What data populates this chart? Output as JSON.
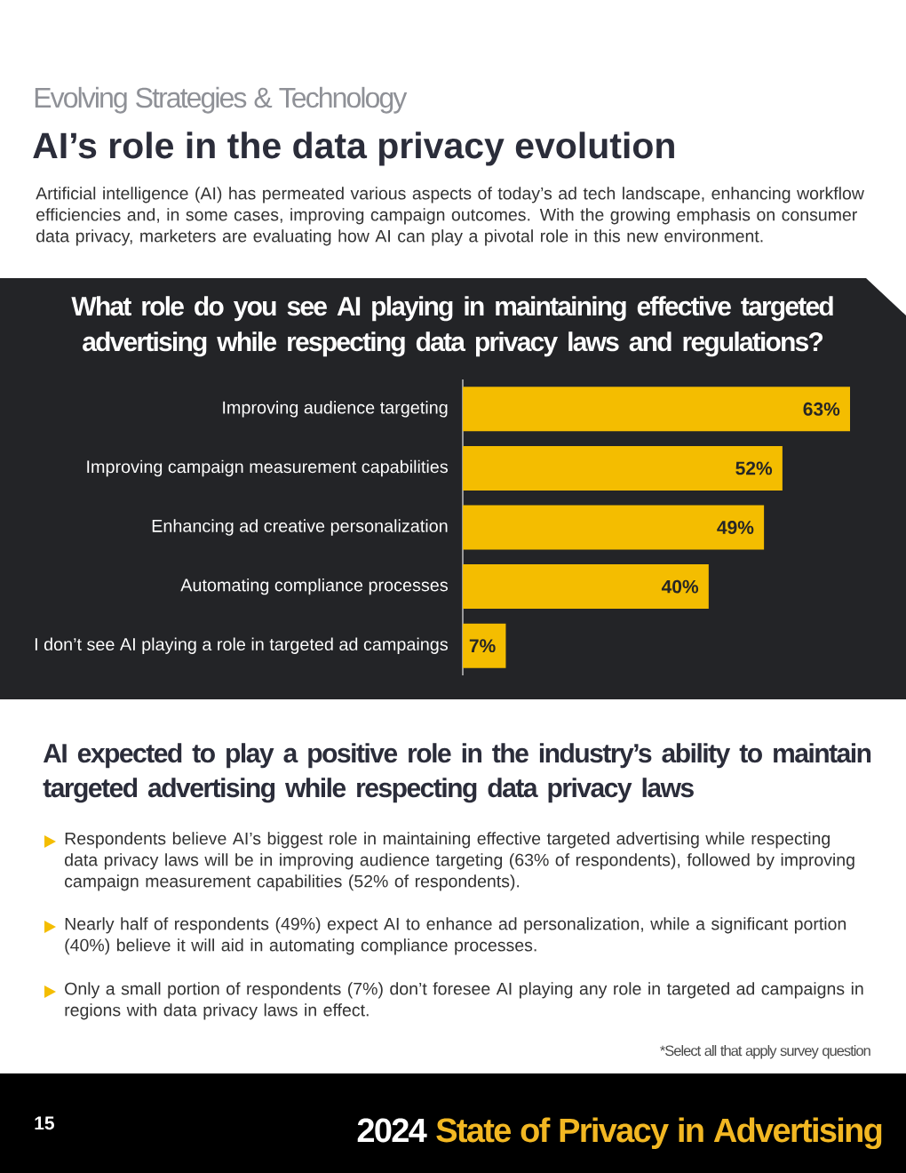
{
  "chart_data": {
    "type": "bar",
    "orientation": "horizontal",
    "title": "What role do you see AI playing in maintaining effective targeted advertising while respecting data privacy laws and regulations?",
    "categories": [
      "Improving audience targeting",
      "Improving campaign measurement capabilities",
      "Enhancing ad creative personalization",
      "Automating compliance processes",
      "I don’t see AI playing a role in targeted ad campaings"
    ],
    "values": [
      63,
      52,
      49,
      40,
      7
    ],
    "color": "#f4bd00",
    "value_labels": [
      "63%",
      "52%",
      "49%",
      "40%",
      "7%"
    ],
    "tick_labels": "y",
    "annotations": [
      "Evolving Strategies & Technology",
      "AI’s role in the data privacy evolution",
      "Artificial intelligence (AI) has permeated various aspects of today’s ad tech landscape, enhancing workflow efficiencies and, in some cases, improving campaign outcomes. With the growing emphasis on consumer data privacy, marketers are evaluating how AI can play a pivotal role in this new environment.",
      "AI expected to play a positive role in the industry’s ability to maintain targeted advertising while respecting data privacy laws",
      "Respondents believe AI’s biggest role in maintaining effective targeted advertising while respecting data privacy laws will be in improving audience targeting (63% of respondents), followed by improving campaign measurement capabilities (52% of respondents).",
      "Nearly half of respondents (49%) expect AI to enhance ad personalization, while a significant portion (40%) believe it will aid in automating compliance processes.",
      "Only a small portion of respondents (7%) don’t foresee AI playing any role in targeted ad campaigns in regions with data privacy laws in effect.",
      "*Select all that apply survey question",
      "15",
      "2024",
      "State of Privacy in Advertising"
    ]
  }
}
